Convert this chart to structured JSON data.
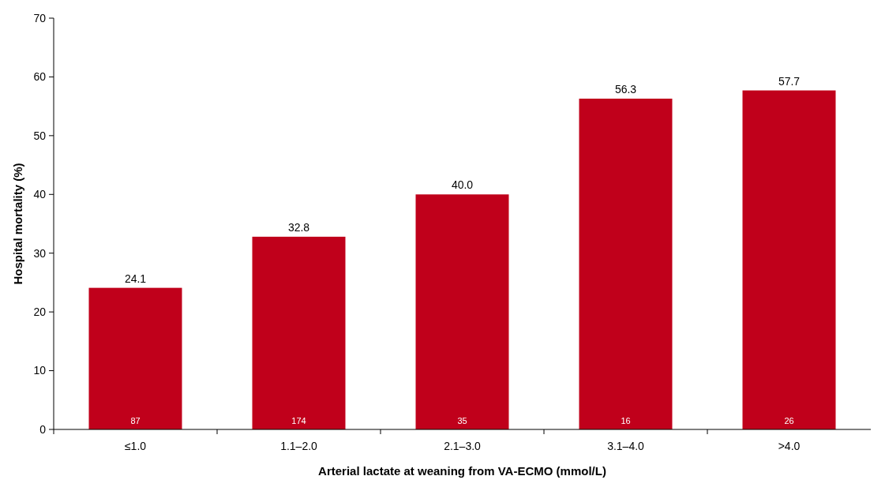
{
  "chart_data": {
    "type": "bar",
    "xlabel": "Arterial lactate at weaning from VA-ECMO (mmol/L)",
    "ylabel": "Hospital mortality (%)",
    "categories": [
      "≤1.0",
      "1.1–2.0",
      "2.1–3.0",
      "3.1–4.0",
      ">4.0"
    ],
    "values": [
      24.1,
      32.8,
      40.0,
      56.3,
      57.7
    ],
    "value_labels": [
      "24.1",
      "32.8",
      "40.0",
      "56.3",
      "57.7"
    ],
    "color": "#c0001b",
    "ylim": [
      0,
      70
    ],
    "yticks": [
      0,
      10,
      20,
      30,
      40,
      50,
      60,
      70
    ],
    "grid": false,
    "annotations": [
      {
        "text": "87",
        "x": "≤1.0",
        "y": 0
      },
      {
        "text": "174",
        "x": "1.1–2.0",
        "y": 0
      },
      {
        "text": "35",
        "x": "2.1–3.0",
        "y": 0
      },
      {
        "text": "16",
        "x": "3.1–4.0",
        "y": 0
      },
      {
        "text": "26",
        "x": ">4.0",
        "y": 0
      }
    ]
  }
}
